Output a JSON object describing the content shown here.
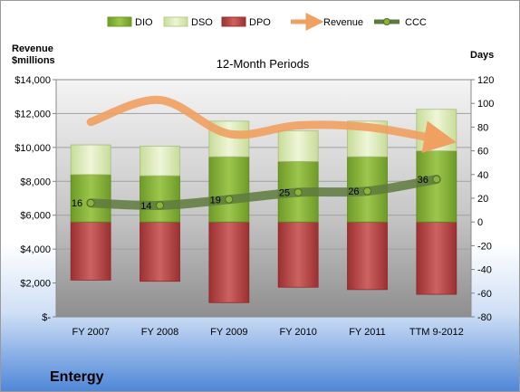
{
  "company": "Entergy",
  "chart_data": {
    "type": "bar",
    "title": "12-Month Periods",
    "categories": [
      "FY 2007",
      "FY 2008",
      "FY 2009",
      "FY 2010",
      "FY 2011",
      "TTM 9-2012"
    ],
    "y_left": {
      "label_line1": "Revenue",
      "label_line2": "$millions",
      "range": [
        0,
        14000
      ],
      "ticks": [
        0,
        2000,
        4000,
        6000,
        8000,
        10000,
        12000,
        14000
      ],
      "tick_labels": [
        "$-",
        "$2,000",
        "$4,000",
        "$6,000",
        "$8,000",
        "$10,000",
        "$12,000",
        "$14,000"
      ]
    },
    "y_right": {
      "label": "Days",
      "range": [
        -80,
        120
      ],
      "ticks": [
        -80,
        -60,
        -40,
        -20,
        0,
        20,
        40,
        60,
        80,
        100,
        120
      ],
      "tick_labels": [
        "-80",
        "-60",
        "-40",
        "-20",
        "0",
        "20",
        "40",
        "60",
        "80",
        "100",
        "120"
      ]
    },
    "legend": {
      "placement": "top",
      "entries": [
        "DIO",
        "DSO",
        "DPO",
        "Revenue",
        "CCC"
      ]
    },
    "series": [
      {
        "name": "DIO",
        "axis": "right",
        "values": [
          0,
          0,
          0,
          0,
          0,
          0
        ]
      },
      {
        "name": "DIO",
        "axis": "right",
        "values": [
          40,
          39,
          55,
          51,
          55,
          60
        ]
      },
      {
        "name": "DSO",
        "axis": "right",
        "values": [
          25,
          25,
          30,
          26,
          30,
          35
        ]
      },
      {
        "name": "DPO",
        "axis": "right",
        "values": [
          -49,
          -50,
          -68,
          -55,
          -57,
          -61
        ]
      },
      {
        "name": "Revenue",
        "axis": "left",
        "values": [
          11500,
          12800,
          10800,
          11300,
          11200,
          10500
        ]
      },
      {
        "name": "CCC",
        "axis": "right",
        "values": [
          16,
          14,
          19,
          25,
          26,
          36
        ]
      }
    ],
    "ccc_labels": [
      "16",
      "14",
      "19",
      "25",
      "26",
      "36"
    ],
    "colors": {
      "DIO": "#8db33c",
      "DSO": "#d8e8b4",
      "DPO": "#b84a4a",
      "Revenue": "#f0a060",
      "CCC": "#5e7a3c"
    },
    "grid": true
  }
}
